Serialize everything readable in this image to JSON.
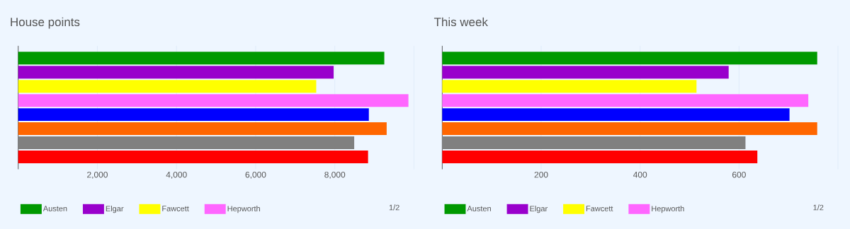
{
  "chart_data": [
    {
      "type": "bar",
      "orientation": "horizontal",
      "title": "House points",
      "categories": [
        null
      ],
      "series": [
        {
          "name": "Austen",
          "color": "#009900",
          "values": [
            9250
          ]
        },
        {
          "name": "Elgar",
          "color": "#9900cc",
          "values": [
            7970
          ]
        },
        {
          "name": "Fawcett",
          "color": "#ffff00",
          "values": [
            7530
          ]
        },
        {
          "name": "Hepworth",
          "color": "#ff66ff",
          "values": [
            9860
          ]
        },
        {
          "color": "#0000ff",
          "values": [
            8860
          ]
        },
        {
          "color": "#ff6600",
          "values": [
            9310
          ]
        },
        {
          "color": "#808080",
          "values": [
            8490
          ]
        },
        {
          "color": "#ff0000",
          "values": [
            8840
          ]
        }
      ],
      "xlim": [
        0,
        10000
      ],
      "xticks": [
        {
          "value": 2000,
          "label": "2,000"
        },
        {
          "value": 4000,
          "label": "4,000"
        },
        {
          "value": 6000,
          "label": "6,000"
        },
        {
          "value": 8000,
          "label": "8,000"
        },
        {
          "value": 10000,
          "label": null
        }
      ],
      "grid": "x",
      "legend": "bottom",
      "annotations": [
        "1/2"
      ]
    },
    {
      "type": "bar",
      "orientation": "horizontal",
      "title": "This week",
      "categories": [
        null
      ],
      "series": [
        {
          "name": "Austen",
          "color": "#009900",
          "values": [
            758
          ]
        },
        {
          "name": "Elgar",
          "color": "#9900cc",
          "values": [
            579
          ]
        },
        {
          "name": "Fawcett",
          "color": "#ffff00",
          "values": [
            514
          ]
        },
        {
          "name": "Hepworth",
          "color": "#ff66ff",
          "values": [
            740
          ]
        },
        {
          "color": "#0000ff",
          "values": [
            702
          ]
        },
        {
          "color": "#ff6600",
          "values": [
            758
          ]
        },
        {
          "color": "#808080",
          "values": [
            613
          ]
        },
        {
          "color": "#ff0000",
          "values": [
            637
          ]
        }
      ],
      "xlim": [
        0,
        800
      ],
      "xticks": [
        200,
        400,
        600,
        {
          "value": 800,
          "label": null
        }
      ],
      "grid": "x",
      "legend": "bottom",
      "annotations": [
        "1/2"
      ]
    }
  ]
}
